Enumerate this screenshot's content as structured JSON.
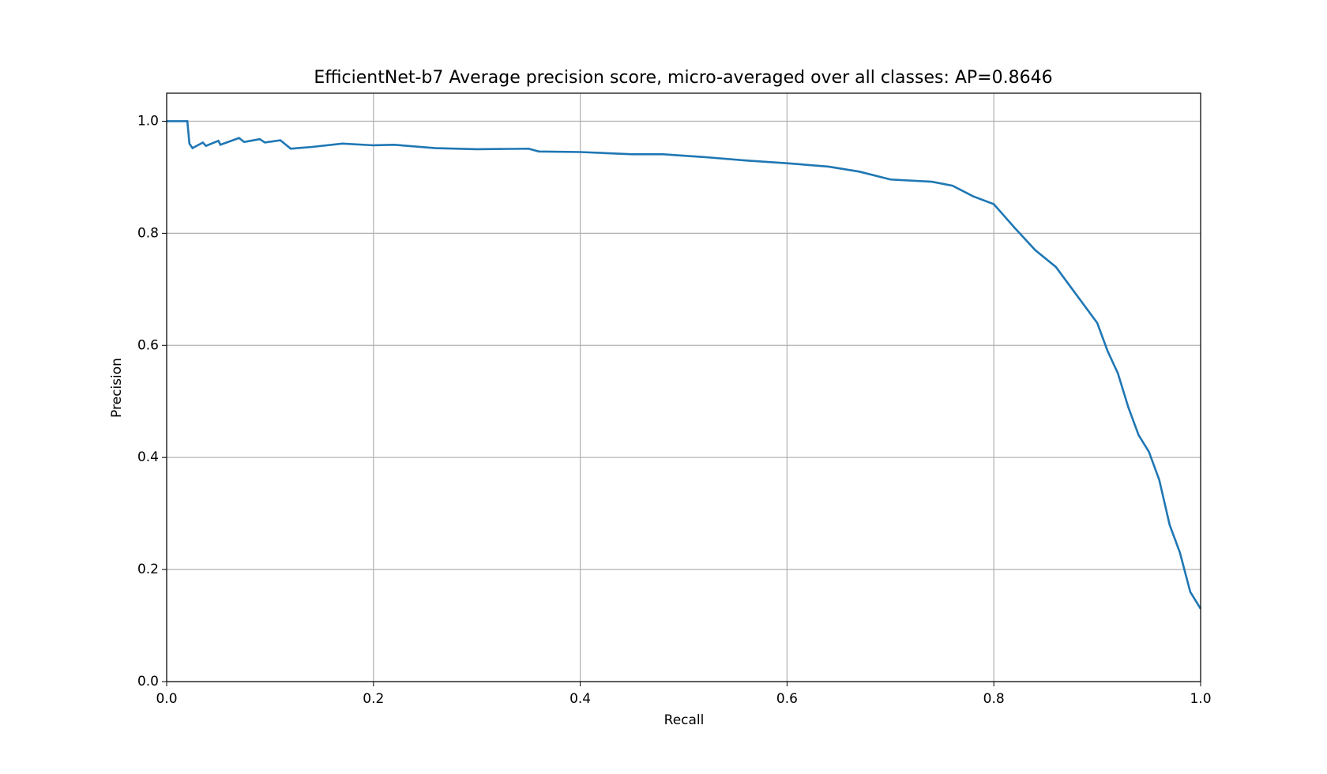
{
  "chart_data": {
    "type": "line",
    "title": "EfficientNet-b7 Average precision score, micro-averaged over all classes: AP=0.8646",
    "x_label": "Recall",
    "y_label": "Precision",
    "x": [
      0,
      0.02,
      0.021,
      0.022,
      0.025,
      0.035,
      0.038,
      0.05,
      0.052,
      0.07,
      0.075,
      0.09,
      0.095,
      0.11,
      0.12,
      0.14,
      0.17,
      0.2,
      0.22,
      0.26,
      0.3,
      0.35,
      0.36,
      0.4,
      0.45,
      0.48,
      0.52,
      0.56,
      0.6,
      0.64,
      0.67,
      0.7,
      0.74,
      0.76,
      0.78,
      0.8,
      0.82,
      0.84,
      0.86,
      0.88,
      0.9,
      0.91,
      0.92,
      0.93,
      0.94,
      0.95,
      0.96,
      0.97,
      0.98,
      0.99,
      1.0
    ],
    "series": [
      {
        "color": "#1f77b4",
        "values": [
          1.0,
          1.0,
          0.98,
          0.96,
          0.952,
          0.962,
          0.956,
          0.965,
          0.958,
          0.97,
          0.963,
          0.968,
          0.962,
          0.966,
          0.951,
          0.954,
          0.96,
          0.957,
          0.958,
          0.952,
          0.95,
          0.951,
          0.946,
          0.945,
          0.941,
          0.941,
          0.936,
          0.93,
          0.925,
          0.919,
          0.91,
          0.896,
          0.892,
          0.885,
          0.866,
          0.852,
          0.81,
          0.77,
          0.74,
          0.69,
          0.64,
          0.59,
          0.55,
          0.49,
          0.44,
          0.41,
          0.36,
          0.28,
          0.23,
          0.16,
          0.13
        ]
      }
    ],
    "xlim": [
      0,
      1
    ],
    "ylim": [
      0,
      1.05
    ],
    "xticks": [
      {
        "value": 0,
        "label": "0.0"
      },
      0.2,
      0.4,
      0.6,
      0.8,
      {
        "value": 1,
        "label": "1.0"
      }
    ],
    "yticks": [
      {
        "value": 0,
        "label": "0.0"
      },
      0.2,
      0.4,
      0.6,
      0.8,
      {
        "value": 1,
        "label": "1.0"
      }
    ],
    "grid": true
  }
}
